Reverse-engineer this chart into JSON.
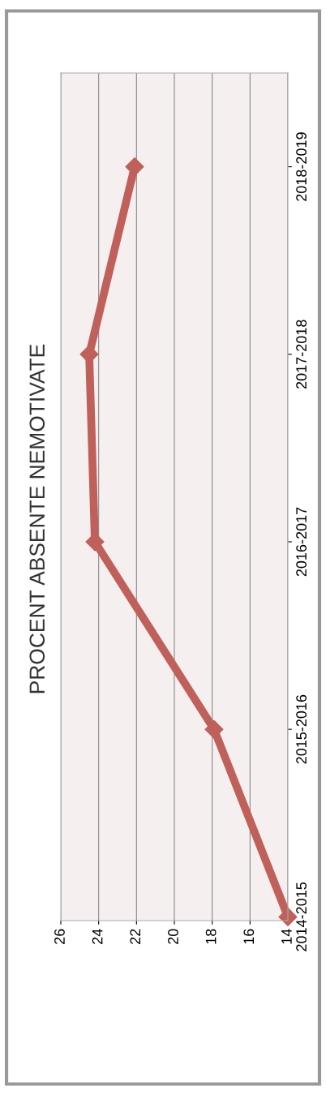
{
  "chart_data": {
    "type": "line",
    "title": "PROCENT ABSENTE NEMOTIVATE",
    "orientation": "horizontal",
    "categories": [
      "2018-2019",
      "2017-2018",
      "2016-2017",
      "2015-2016",
      "2014-2015"
    ],
    "series": [
      {
        "color": "#c0605a",
        "values": [
          22.1,
          24.5,
          24.2,
          17.9,
          14.0
        ]
      }
    ],
    "xlim": [
      26,
      14
    ],
    "xticks": [
      26,
      24,
      22,
      20,
      18,
      16,
      14
    ],
    "grid": "x",
    "marker": "diamond",
    "line_style": "solid"
  }
}
